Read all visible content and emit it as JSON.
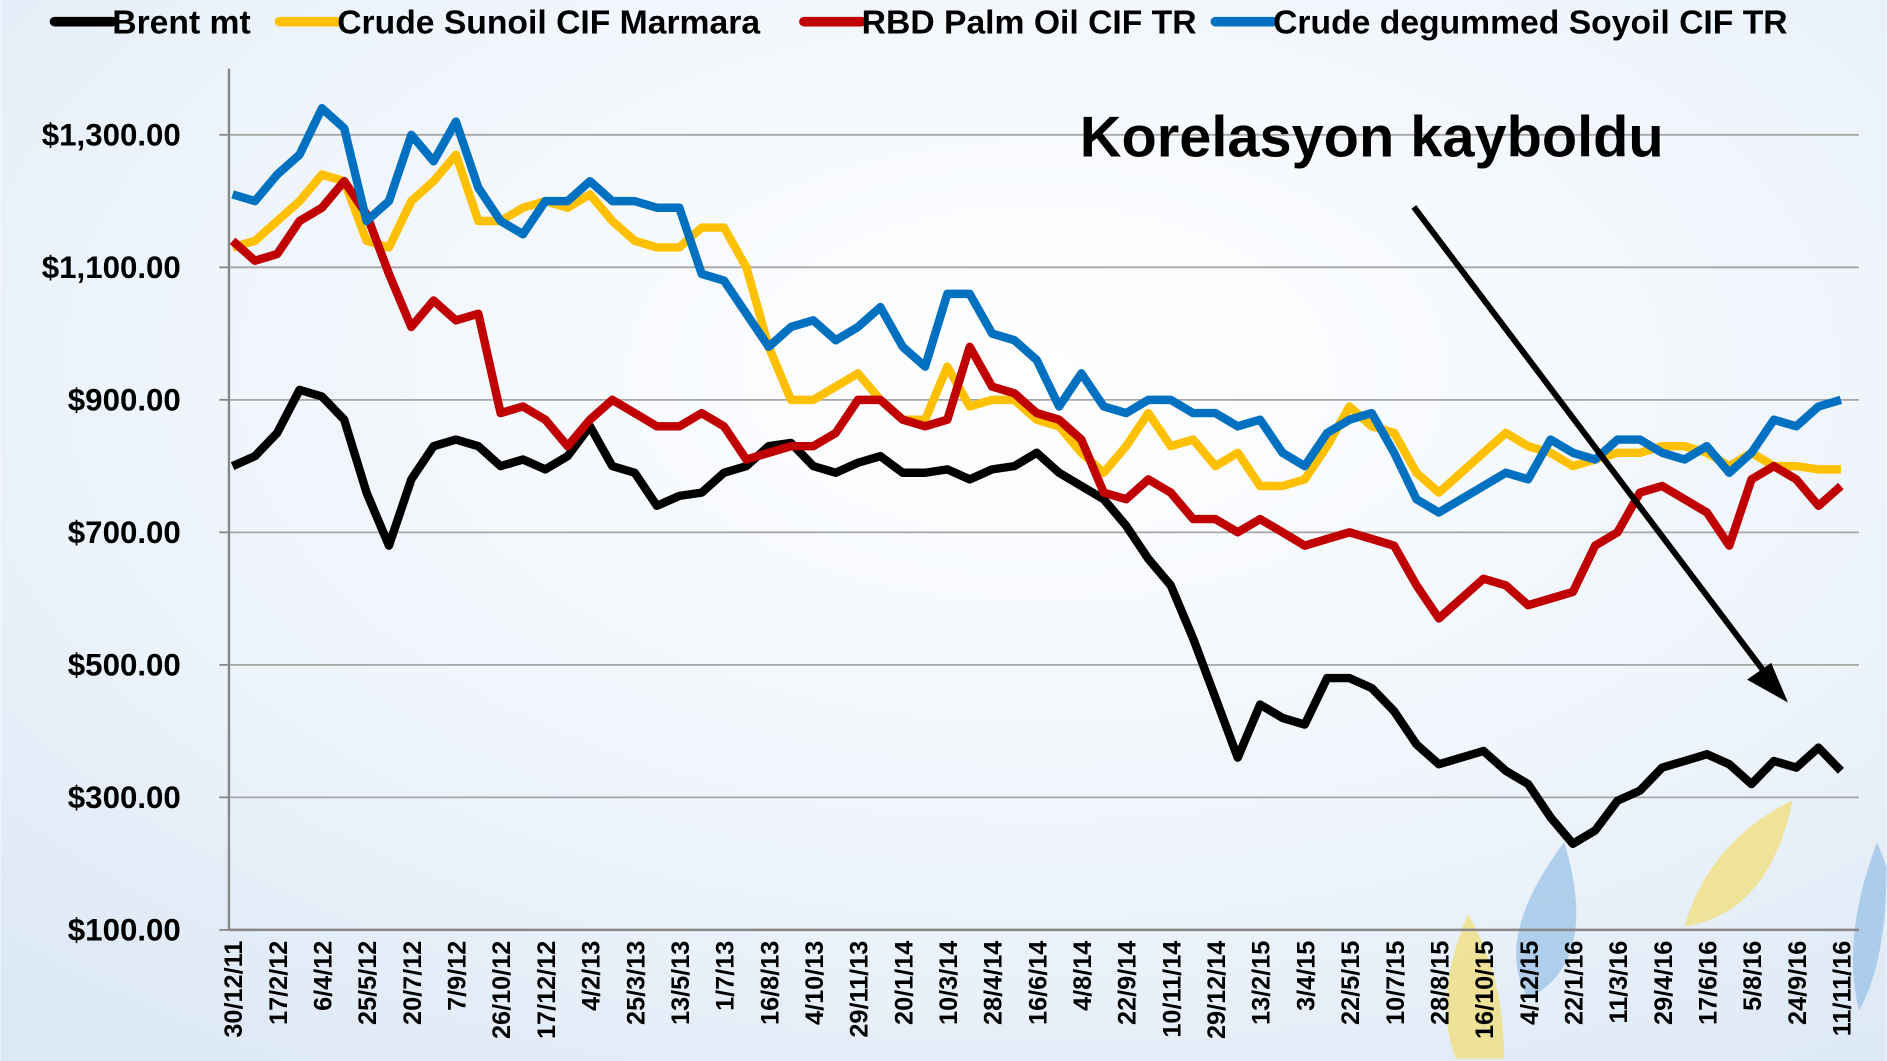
{
  "chart_data": {
    "type": "line",
    "annotation": "Korelasyon kayboldu",
    "categories": [
      "30/12/11",
      null,
      "17/2/12",
      null,
      "6/4/12",
      null,
      "25/5/12",
      null,
      "20/7/12",
      null,
      "7/9/12",
      null,
      "26/10/12",
      null,
      "17/12/12",
      null,
      "4/2/13",
      null,
      "25/3/13",
      null,
      "13/5/13",
      null,
      "1/7/13",
      null,
      "16/8/13",
      null,
      "4/10/13",
      null,
      "29/11/13",
      null,
      "20/1/14",
      null,
      "10/3/14",
      null,
      "28/4/14",
      null,
      "16/6/14",
      null,
      "4/8/14",
      null,
      "22/9/14",
      null,
      "10/11/14",
      null,
      "29/12/14",
      null,
      "13/2/15",
      null,
      "3/4/15",
      null,
      "22/5/15",
      null,
      "10/7/15",
      null,
      "28/8/15",
      null,
      "16/10/15",
      null,
      "4/12/15",
      null,
      "22/1/16",
      null,
      "11/3/16",
      null,
      "29/4/16",
      null,
      "17/6/16",
      null,
      "5/8/16",
      null,
      "24/9/16",
      null,
      "11/11/16"
    ],
    "series": [
      {
        "name": "Brent mt",
        "color": "#000000",
        "values": [
          800,
          815,
          850,
          915,
          905,
          870,
          760,
          680,
          780,
          830,
          840,
          830,
          800,
          810,
          795,
          815,
          860,
          800,
          790,
          740,
          755,
          760,
          790,
          800,
          830,
          835,
          800,
          790,
          805,
          815,
          790,
          790,
          795,
          780,
          795,
          800,
          820,
          790,
          770,
          750,
          710,
          660,
          620,
          540,
          450,
          360,
          440,
          420,
          410,
          480,
          480,
          465,
          430,
          380,
          350,
          360,
          370,
          340,
          320,
          270,
          230,
          250,
          295,
          310,
          345,
          355,
          365,
          350,
          320,
          355,
          345,
          375,
          340
        ]
      },
      {
        "name": "Crude Sunoil CIF Marmara",
        "color": "#ffc000",
        "values": [
          1130,
          1140,
          1170,
          1200,
          1240,
          1230,
          1140,
          1130,
          1200,
          1230,
          1270,
          1170,
          1170,
          1190,
          1200,
          1190,
          1210,
          1170,
          1140,
          1130,
          1130,
          1160,
          1160,
          1100,
          980,
          900,
          900,
          920,
          940,
          900,
          870,
          870,
          950,
          890,
          900,
          900,
          870,
          860,
          820,
          790,
          830,
          880,
          830,
          840,
          800,
          820,
          770,
          770,
          780,
          830,
          890,
          860,
          850,
          790,
          760,
          790,
          820,
          850,
          830,
          820,
          800,
          810,
          820,
          820,
          830,
          830,
          820,
          800,
          820,
          800,
          800,
          795,
          795
        ]
      },
      {
        "name": "RBD Palm Oil CIF TR",
        "color": "#c00000",
        "values": [
          1140,
          1110,
          1120,
          1170,
          1190,
          1230,
          1180,
          1090,
          1010,
          1050,
          1020,
          1030,
          880,
          890,
          870,
          830,
          870,
          900,
          880,
          860,
          860,
          880,
          860,
          810,
          820,
          830,
          830,
          850,
          900,
          900,
          870,
          860,
          870,
          980,
          920,
          910,
          880,
          870,
          840,
          760,
          750,
          780,
          760,
          720,
          720,
          700,
          720,
          700,
          680,
          690,
          700,
          690,
          680,
          620,
          570,
          600,
          630,
          620,
          590,
          600,
          610,
          680,
          700,
          760,
          770,
          750,
          730,
          680,
          780,
          800,
          780,
          740,
          770
        ]
      },
      {
        "name": "Crude degummed Soyoil CIF TR",
        "color": "#0070c0",
        "values": [
          1210,
          1200,
          1240,
          1270,
          1340,
          1310,
          1170,
          1200,
          1300,
          1260,
          1320,
          1220,
          1170,
          1150,
          1200,
          1200,
          1230,
          1200,
          1200,
          1190,
          1190,
          1090,
          1080,
          1030,
          980,
          1010,
          1020,
          990,
          1010,
          1040,
          980,
          950,
          1060,
          1060,
          1000,
          990,
          960,
          890,
          940,
          890,
          880,
          900,
          900,
          880,
          880,
          860,
          870,
          820,
          800,
          850,
          870,
          880,
          820,
          750,
          730,
          750,
          770,
          790,
          780,
          840,
          820,
          810,
          840,
          840,
          820,
          810,
          830,
          790,
          820,
          870,
          860,
          890,
          900
        ]
      }
    ],
    "ylim": [
      100,
      1400
    ],
    "yticks": [
      {
        "value": 100,
        "label": "$100.00"
      },
      {
        "value": 300,
        "label": "$300.00"
      },
      {
        "value": 500,
        "label": "$500.00"
      },
      {
        "value": 700,
        "label": "$700.00"
      },
      {
        "value": 900,
        "label": "$900.00"
      },
      {
        "value": 1100,
        "label": "$1,100.00"
      },
      {
        "value": 1300,
        "label": "$1,300.00"
      }
    ],
    "grid": true
  }
}
